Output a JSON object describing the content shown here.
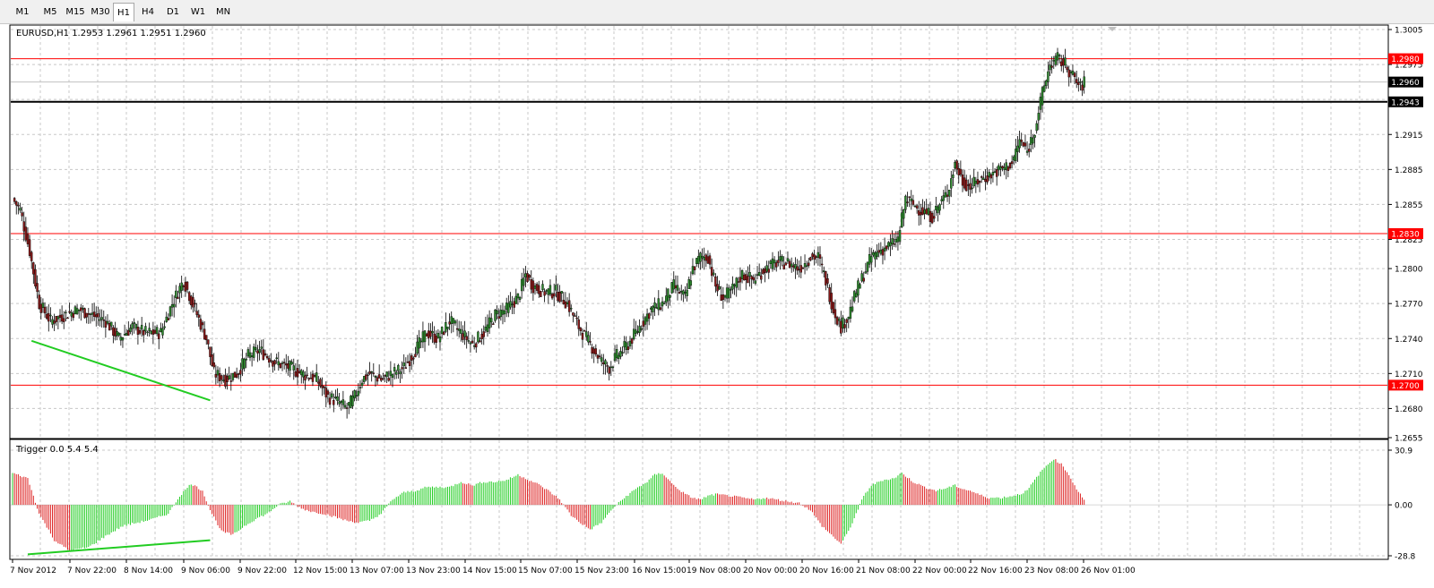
{
  "toolbar": {
    "timeframes": [
      {
        "label": "M1",
        "active": false
      },
      {
        "label": "M5",
        "active": false
      },
      {
        "label": "M15",
        "active": false
      },
      {
        "label": "M30",
        "active": false
      },
      {
        "label": "H1",
        "active": true
      },
      {
        "label": "H4",
        "active": false
      },
      {
        "label": "D1",
        "active": false
      },
      {
        "label": "W1",
        "active": false
      },
      {
        "label": "MN",
        "active": false
      }
    ]
  },
  "price_pane": {
    "header": "EURUSD,H1  1.2953 1.2961 1.2951 1.2960",
    "symbol": "EURUSD",
    "timeframe": "H1",
    "ohlc": {
      "open": 1.2953,
      "high": 1.2961,
      "low": 1.2951,
      "close": 1.296
    }
  },
  "indicator_pane": {
    "header": "Trigger 0.0 5.4 5.4",
    "name": "Trigger",
    "params": [
      0.0,
      5.4,
      5.4
    ]
  },
  "chart_data": [
    {
      "type": "candlestick",
      "symbol": "EURUSD",
      "timeframe": "H1",
      "ylim": [
        1.2655,
        1.3005
      ],
      "yticks": [
        1.3005,
        1.2975,
        1.2945,
        1.2915,
        1.2885,
        1.2855,
        1.2825,
        1.28,
        1.277,
        1.274,
        1.271,
        1.268,
        1.2655
      ],
      "xticks": [
        "7 Nov 2012",
        "7 Nov 22:00",
        "8 Nov 14:00",
        "9 Nov 06:00",
        "9 Nov 22:00",
        "12 Nov 15:00",
        "13 Nov 07:00",
        "13 Nov 23:00",
        "14 Nov 15:00",
        "15 Nov 07:00",
        "15 Nov 23:00",
        "16 Nov 15:00",
        "19 Nov 08:00",
        "20 Nov 00:00",
        "20 Nov 16:00",
        "21 Nov 08:00",
        "22 Nov 00:00",
        "22 Nov 16:00",
        "23 Nov 08:00",
        "26 Nov 01:00"
      ],
      "grid": true,
      "bullish_color": "#2e8b2e",
      "bearish_color": "#8b1a1a",
      "price_path": [
        [
          0,
          1.286
        ],
        [
          4,
          1.285
        ],
        [
          9,
          1.2815
        ],
        [
          14,
          1.277
        ],
        [
          20,
          1.2755
        ],
        [
          27,
          1.276
        ],
        [
          35,
          1.2765
        ],
        [
          42,
          1.276
        ],
        [
          49,
          1.2755
        ],
        [
          56,
          1.274
        ],
        [
          63,
          1.275
        ],
        [
          70,
          1.2745
        ],
        [
          78,
          1.2745
        ],
        [
          84,
          1.277
        ],
        [
          90,
          1.279
        ],
        [
          96,
          1.2765
        ],
        [
          102,
          1.274
        ],
        [
          106,
          1.271
        ],
        [
          112,
          1.2705
        ],
        [
          118,
          1.271
        ],
        [
          124,
          1.2725
        ],
        [
          130,
          1.273
        ],
        [
          138,
          1.272
        ],
        [
          146,
          1.2715
        ],
        [
          152,
          1.271
        ],
        [
          160,
          1.2705
        ],
        [
          166,
          1.269
        ],
        [
          172,
          1.2685
        ],
        [
          176,
          1.268
        ],
        [
          180,
          1.269
        ],
        [
          184,
          1.2705
        ],
        [
          188,
          1.271
        ],
        [
          194,
          1.2705
        ],
        [
          200,
          1.271
        ],
        [
          206,
          1.2715
        ],
        [
          212,
          1.273
        ],
        [
          218,
          1.2745
        ],
        [
          224,
          1.274
        ],
        [
          230,
          1.2755
        ],
        [
          236,
          1.2745
        ],
        [
          242,
          1.2735
        ],
        [
          248,
          1.2745
        ],
        [
          254,
          1.276
        ],
        [
          260,
          1.2765
        ],
        [
          266,
          1.2775
        ],
        [
          270,
          1.2795
        ],
        [
          274,
          1.2785
        ],
        [
          280,
          1.278
        ],
        [
          286,
          1.278
        ],
        [
          292,
          1.277
        ],
        [
          298,
          1.275
        ],
        [
          304,
          1.2735
        ],
        [
          310,
          1.272
        ],
        [
          314,
          1.2715
        ],
        [
          318,
          1.2725
        ],
        [
          324,
          1.2735
        ],
        [
          330,
          1.275
        ],
        [
          336,
          1.2765
        ],
        [
          342,
          1.277
        ],
        [
          348,
          1.2785
        ],
        [
          354,
          1.2775
        ],
        [
          358,
          1.28
        ],
        [
          362,
          1.281
        ],
        [
          366,
          1.281
        ],
        [
          370,
          1.2785
        ],
        [
          374,
          1.2775
        ],
        [
          378,
          1.278
        ],
        [
          384,
          1.2795
        ],
        [
          390,
          1.279
        ],
        [
          396,
          1.28
        ],
        [
          402,
          1.2805
        ],
        [
          408,
          1.2805
        ],
        [
          414,
          1.28
        ],
        [
          420,
          1.281
        ],
        [
          424,
          1.281
        ],
        [
          428,
          1.279
        ],
        [
          432,
          1.2765
        ],
        [
          436,
          1.275
        ],
        [
          440,
          1.276
        ],
        [
          444,
          1.278
        ],
        [
          448,
          1.2795
        ],
        [
          452,
          1.281
        ],
        [
          456,
          1.2815
        ],
        [
          462,
          1.282
        ],
        [
          466,
          1.2825
        ],
        [
          470,
          1.286
        ],
        [
          474,
          1.2855
        ],
        [
          478,
          1.285
        ],
        [
          484,
          1.2845
        ],
        [
          488,
          1.2855
        ],
        [
          492,
          1.2865
        ],
        [
          496,
          1.289
        ],
        [
          500,
          1.2875
        ],
        [
          504,
          1.287
        ],
        [
          508,
          1.2875
        ],
        [
          514,
          1.288
        ],
        [
          520,
          1.2885
        ],
        [
          526,
          1.289
        ],
        [
          530,
          1.291
        ],
        [
          534,
          1.29
        ],
        [
          538,
          1.292
        ],
        [
          542,
          1.295
        ],
        [
          546,
          1.2975
        ],
        [
          550,
          1.298
        ],
        [
          554,
          1.2975
        ],
        [
          558,
          1.2965
        ],
        [
          562,
          1.2955
        ],
        [
          564,
          1.296
        ]
      ],
      "horizontal_lines": [
        {
          "price": 1.298,
          "label": "1.2980",
          "color": "#ff0000"
        },
        {
          "price": 1.296,
          "label": "1.2960",
          "color": "#c0c0c0",
          "kind": "bid"
        },
        {
          "price": 1.2943,
          "label": "1.2943",
          "color": "#000000"
        },
        {
          "price": 1.283,
          "label": "1.2830",
          "color": "#ff0000"
        },
        {
          "price": 1.27,
          "label": "1.2700",
          "color": "#ff0000"
        }
      ],
      "trendlines": [
        {
          "color": "#22cc22",
          "from": {
            "bar": 10,
            "price": 1.2738
          },
          "to": {
            "bar": 104,
            "price": 1.2687
          }
        }
      ]
    },
    {
      "type": "histogram",
      "name": "Trigger",
      "ylim": [
        -28.8,
        30.9
      ],
      "yticks": [
        30.9,
        0.0,
        -28.8
      ],
      "rising_color": "#22cc22",
      "falling_color": "#dd2222",
      "value_path": [
        [
          0,
          18
        ],
        [
          8,
          15
        ],
        [
          14,
          -5
        ],
        [
          22,
          -20
        ],
        [
          30,
          -26
        ],
        [
          40,
          -24
        ],
        [
          50,
          -17
        ],
        [
          58,
          -12
        ],
        [
          66,
          -10
        ],
        [
          74,
          -8
        ],
        [
          82,
          -5
        ],
        [
          88,
          5
        ],
        [
          94,
          12
        ],
        [
          100,
          8
        ],
        [
          104,
          -3
        ],
        [
          110,
          -15
        ],
        [
          116,
          -17
        ],
        [
          122,
          -12
        ],
        [
          128,
          -8
        ],
        [
          134,
          -5
        ],
        [
          140,
          0
        ],
        [
          146,
          2
        ],
        [
          152,
          -2
        ],
        [
          158,
          -4
        ],
        [
          164,
          -5
        ],
        [
          170,
          -7
        ],
        [
          176,
          -9
        ],
        [
          182,
          -10
        ],
        [
          188,
          -9
        ],
        [
          194,
          -5
        ],
        [
          200,
          3
        ],
        [
          206,
          7
        ],
        [
          212,
          8
        ],
        [
          218,
          10
        ],
        [
          224,
          10
        ],
        [
          230,
          10
        ],
        [
          236,
          13
        ],
        [
          242,
          11
        ],
        [
          248,
          13
        ],
        [
          254,
          13
        ],
        [
          260,
          14
        ],
        [
          266,
          17
        ],
        [
          270,
          15
        ],
        [
          276,
          12
        ],
        [
          282,
          8
        ],
        [
          288,
          3
        ],
        [
          294,
          -6
        ],
        [
          300,
          -11
        ],
        [
          304,
          -14
        ],
        [
          310,
          -10
        ],
        [
          316,
          -2
        ],
        [
          322,
          4
        ],
        [
          328,
          9
        ],
        [
          334,
          13
        ],
        [
          338,
          17
        ],
        [
          342,
          18
        ],
        [
          348,
          11
        ],
        [
          354,
          6
        ],
        [
          358,
          4
        ],
        [
          362,
          3
        ],
        [
          366,
          5
        ],
        [
          370,
          6
        ],
        [
          378,
          5
        ],
        [
          384,
          4
        ],
        [
          390,
          3
        ],
        [
          396,
          4
        ],
        [
          402,
          3
        ],
        [
          408,
          2
        ],
        [
          414,
          1
        ],
        [
          420,
          -3
        ],
        [
          426,
          -12
        ],
        [
          432,
          -18
        ],
        [
          436,
          -22
        ],
        [
          440,
          -15
        ],
        [
          444,
          -5
        ],
        [
          448,
          5
        ],
        [
          452,
          11
        ],
        [
          458,
          14
        ],
        [
          464,
          15
        ],
        [
          468,
          18
        ],
        [
          474,
          13
        ],
        [
          480,
          10
        ],
        [
          486,
          8
        ],
        [
          490,
          9
        ],
        [
          496,
          11
        ],
        [
          500,
          9
        ],
        [
          504,
          8
        ],
        [
          508,
          6
        ],
        [
          514,
          4
        ],
        [
          520,
          4
        ],
        [
          526,
          5
        ],
        [
          530,
          6
        ],
        [
          534,
          8
        ],
        [
          540,
          17
        ],
        [
          544,
          22
        ],
        [
          548,
          26
        ],
        [
          552,
          23
        ],
        [
          556,
          17
        ],
        [
          560,
          9
        ],
        [
          564,
          3
        ]
      ],
      "trendlines": [
        {
          "color": "#22cc22",
          "from": {
            "bar": 8,
            "value": -28
          },
          "to": {
            "bar": 104,
            "value": -20
          }
        }
      ]
    }
  ]
}
